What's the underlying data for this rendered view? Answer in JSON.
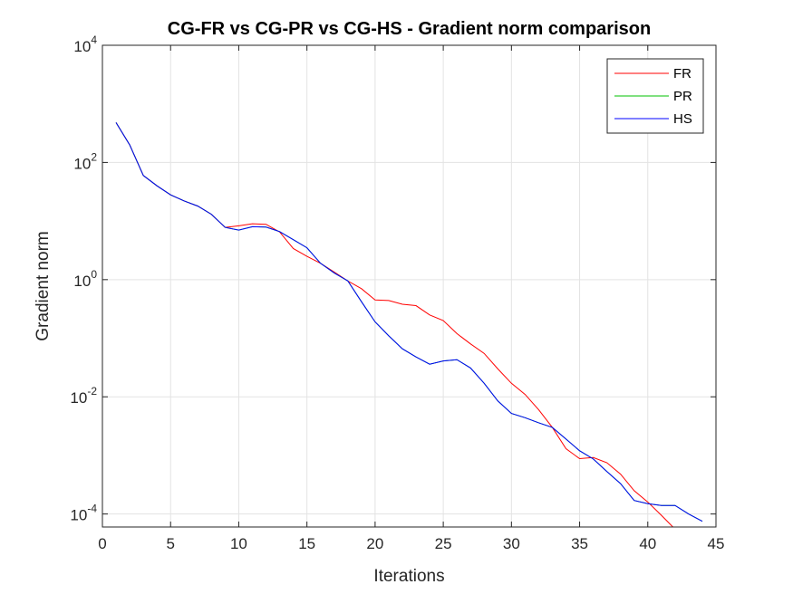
{
  "chart_data": {
    "type": "line",
    "title": "CG-FR vs CG-PR vs CG-HS - Gradient norm comparison",
    "xlabel": "Iterations",
    "ylabel": "Gradient norm",
    "xlim": [
      0,
      45
    ],
    "ylim": [
      6e-05,
      10000
    ],
    "yscale": "log",
    "grid": true,
    "legend_position": "top-right",
    "xticks": [
      "0",
      "5",
      "10",
      "15",
      "20",
      "25",
      "30",
      "35",
      "40",
      "45"
    ],
    "yticks": [
      {
        "value": 0.0001,
        "base": "10",
        "exp": "-4"
      },
      {
        "value": 0.01,
        "base": "10",
        "exp": "-2"
      },
      {
        "value": 1,
        "base": "10",
        "exp": "0"
      },
      {
        "value": 100,
        "base": "10",
        "exp": "2"
      },
      {
        "value": 10000,
        "base": "10",
        "exp": "4"
      }
    ],
    "series": [
      {
        "name": "FR",
        "color": "#ff0000",
        "x": [
          1,
          2,
          3,
          4,
          5,
          6,
          7,
          8,
          9,
          10,
          11,
          12,
          13,
          14,
          15,
          16,
          17,
          18,
          19,
          20,
          21,
          22,
          23,
          24,
          25,
          26,
          27,
          28,
          29,
          30,
          31,
          32,
          33,
          34,
          35,
          36,
          37,
          38,
          39,
          40,
          41,
          42,
          43
        ],
        "values": [
          480,
          200,
          60,
          40,
          28,
          22,
          18,
          13,
          7.8,
          8.3,
          9,
          8.8,
          6.5,
          3.4,
          2.5,
          1.9,
          1.35,
          0.95,
          0.7,
          0.45,
          0.44,
          0.38,
          0.36,
          0.25,
          0.2,
          0.12,
          0.08,
          0.055,
          0.03,
          0.017,
          0.011,
          0.006,
          0.003,
          0.0013,
          0.00088,
          0.00092,
          0.00075,
          0.00048,
          0.00025,
          0.00016,
          9.5e-05,
          5.5e-05,
          3e-05
        ]
      },
      {
        "name": "PR",
        "color": "#00c000",
        "x": [
          1,
          2,
          3,
          4,
          5,
          6,
          7,
          8,
          9,
          10,
          11,
          12,
          13,
          14,
          15,
          16,
          17,
          18,
          19,
          20,
          21,
          22,
          23,
          24,
          25,
          26,
          27,
          28,
          29,
          30,
          31,
          32,
          33,
          34,
          35,
          36,
          37,
          38,
          39,
          40,
          41,
          42,
          43,
          44
        ],
        "values": [
          480,
          200,
          60,
          40,
          28,
          22,
          18,
          13,
          7.8,
          7,
          8,
          7.9,
          6.6,
          4.8,
          3.5,
          1.9,
          1.3,
          0.95,
          0.42,
          0.19,
          0.11,
          0.066,
          0.048,
          0.036,
          0.041,
          0.043,
          0.031,
          0.017,
          0.0085,
          0.0052,
          0.0044,
          0.0036,
          0.003,
          0.0019,
          0.0012,
          0.00087,
          0.00053,
          0.00033,
          0.00017,
          0.00015,
          0.00014,
          0.00014,
          0.0001,
          7.5e-05
        ]
      },
      {
        "name": "HS",
        "color": "#0000ff",
        "x": [
          1,
          2,
          3,
          4,
          5,
          6,
          7,
          8,
          9,
          10,
          11,
          12,
          13,
          14,
          15,
          16,
          17,
          18,
          19,
          20,
          21,
          22,
          23,
          24,
          25,
          26,
          27,
          28,
          29,
          30,
          31,
          32,
          33,
          34,
          35,
          36,
          37,
          38,
          39,
          40,
          41,
          42,
          43,
          44
        ],
        "values": [
          480,
          200,
          60,
          40,
          28,
          22,
          18,
          13,
          7.8,
          7,
          8,
          7.9,
          6.6,
          4.8,
          3.5,
          1.9,
          1.3,
          0.95,
          0.42,
          0.19,
          0.11,
          0.066,
          0.048,
          0.036,
          0.041,
          0.043,
          0.031,
          0.017,
          0.0085,
          0.0052,
          0.0044,
          0.0036,
          0.003,
          0.0019,
          0.0012,
          0.00087,
          0.00053,
          0.00033,
          0.00017,
          0.00015,
          0.00014,
          0.00014,
          0.0001,
          7.5e-05
        ]
      }
    ]
  }
}
